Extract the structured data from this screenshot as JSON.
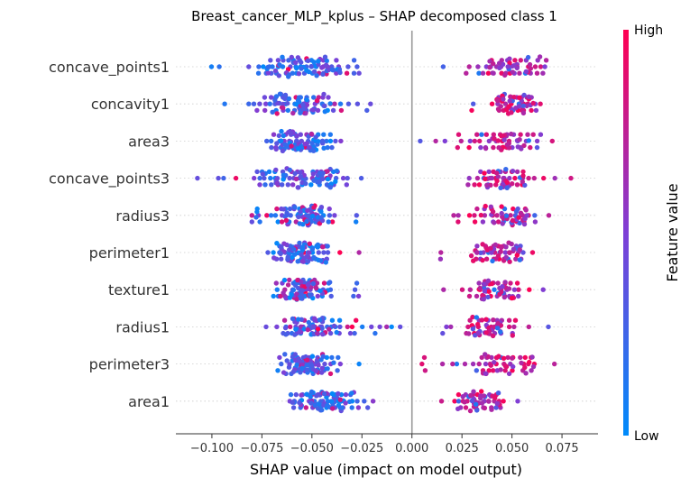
{
  "chart_data": {
    "type": "scatter",
    "subtype": "shap-beeswarm",
    "title": "Breast_cancer_MLP_kplus – SHAP decomposed class 1",
    "xlabel": "SHAP value (impact on model output)",
    "xlim": [
      -0.118,
      0.093
    ],
    "xticks": [
      -0.1,
      -0.075,
      -0.05,
      -0.025,
      0.0,
      0.025,
      0.05,
      0.075
    ],
    "xtick_labels": [
      "−0.100",
      "−0.075",
      "−0.050",
      "−0.025",
      "0.000",
      "0.025",
      "0.050",
      "0.075"
    ],
    "zero_line": 0.0,
    "features": [
      {
        "name": "concave_points1",
        "neg_range": [
          -0.107,
          -0.015
        ],
        "neg_center": -0.055,
        "neg_n": 95,
        "pos_range": [
          0.005,
          0.085
        ],
        "pos_center": 0.05,
        "pos_n": 60,
        "neg_hi_frac": 0.08
      },
      {
        "name": "concavity1",
        "neg_range": [
          -0.1,
          -0.02
        ],
        "neg_center": -0.055,
        "neg_n": 95,
        "pos_range": [
          0.025,
          0.08
        ],
        "pos_center": 0.052,
        "pos_n": 60,
        "neg_hi_frac": 0.1
      },
      {
        "name": "area3",
        "neg_range": [
          -0.075,
          -0.02
        ],
        "neg_center": -0.055,
        "neg_n": 95,
        "pos_range": [
          0.0,
          0.085
        ],
        "pos_center": 0.045,
        "pos_n": 60,
        "neg_hi_frac": 0.05
      },
      {
        "name": "concave_points3",
        "neg_range": [
          -0.11,
          -0.015
        ],
        "neg_center": -0.055,
        "neg_n": 95,
        "pos_range": [
          0.0,
          0.08
        ],
        "pos_center": 0.045,
        "pos_n": 60,
        "neg_hi_frac": 0.1
      },
      {
        "name": "radius3",
        "neg_range": [
          -0.08,
          -0.015
        ],
        "neg_center": -0.055,
        "neg_n": 95,
        "pos_range": [
          0.01,
          0.07
        ],
        "pos_center": 0.048,
        "pos_n": 60,
        "neg_hi_frac": 0.12
      },
      {
        "name": "perimeter1",
        "neg_range": [
          -0.075,
          -0.025
        ],
        "neg_center": -0.055,
        "neg_n": 95,
        "pos_range": [
          0.01,
          0.07
        ],
        "pos_center": 0.045,
        "pos_n": 60,
        "neg_hi_frac": 0.08
      },
      {
        "name": "texture1",
        "neg_range": [
          -0.075,
          -0.02
        ],
        "neg_center": -0.055,
        "neg_n": 95,
        "pos_range": [
          0.015,
          0.07
        ],
        "pos_center": 0.04,
        "pos_n": 60,
        "neg_hi_frac": 0.3
      },
      {
        "name": "radius1",
        "neg_range": [
          -0.075,
          -0.005
        ],
        "neg_center": -0.05,
        "neg_n": 95,
        "pos_range": [
          0.015,
          0.07
        ],
        "pos_center": 0.04,
        "pos_n": 60,
        "neg_hi_frac": 0.15
      },
      {
        "name": "perimeter3",
        "neg_range": [
          -0.07,
          -0.025
        ],
        "neg_center": -0.052,
        "neg_n": 95,
        "pos_range": [
          0.002,
          0.075
        ],
        "pos_center": 0.045,
        "pos_n": 60,
        "neg_hi_frac": 0.1
      },
      {
        "name": "area1",
        "neg_range": [
          -0.075,
          -0.005
        ],
        "neg_center": -0.045,
        "neg_n": 95,
        "pos_range": [
          0.01,
          0.06
        ],
        "pos_center": 0.035,
        "pos_n": 60,
        "neg_hi_frac": 0.1
      }
    ],
    "colorbar": {
      "label": "Feature value",
      "high_label": "High",
      "low_label": "Low",
      "high_color": "#ff0052",
      "low_color": "#008bfb"
    },
    "grid": false,
    "legend": "colorbar-right"
  }
}
